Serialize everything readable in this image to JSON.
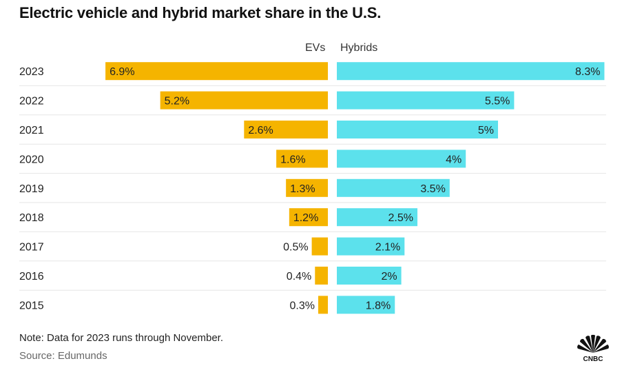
{
  "title": "Electric vehicle and hybrid market share in the U.S.",
  "note": "Note: Data for 2023 runs through November.",
  "source": "Source: Edumunds",
  "logo_text": "CNBC",
  "colors": {
    "ev": "#F5B400",
    "hybrid": "#5CE1EC",
    "divider": "#e6e6e6"
  },
  "chart_data": {
    "type": "bar",
    "orientation": "horizontal-diverging",
    "categories": [
      "2023",
      "2022",
      "2021",
      "2020",
      "2019",
      "2018",
      "2017",
      "2016",
      "2015"
    ],
    "series": [
      {
        "name": "EVs",
        "values": [
          6.9,
          5.2,
          2.6,
          1.6,
          1.3,
          1.2,
          0.5,
          0.4,
          0.3
        ],
        "labels": [
          "6.9%",
          "5.2%",
          "2.6%",
          "1.6%",
          "1.3%",
          "1.2%",
          "0.5%",
          "0.4%",
          "0.3%"
        ]
      },
      {
        "name": "Hybrids",
        "values": [
          8.3,
          5.5,
          5.0,
          4.0,
          3.5,
          2.5,
          2.1,
          2.0,
          1.8
        ],
        "labels": [
          "8.3%",
          "5.5%",
          "5%",
          "4%",
          "3.5%",
          "2.5%",
          "2.1%",
          "2%",
          "1.8%"
        ]
      }
    ],
    "unit": "%",
    "legend": "top"
  }
}
